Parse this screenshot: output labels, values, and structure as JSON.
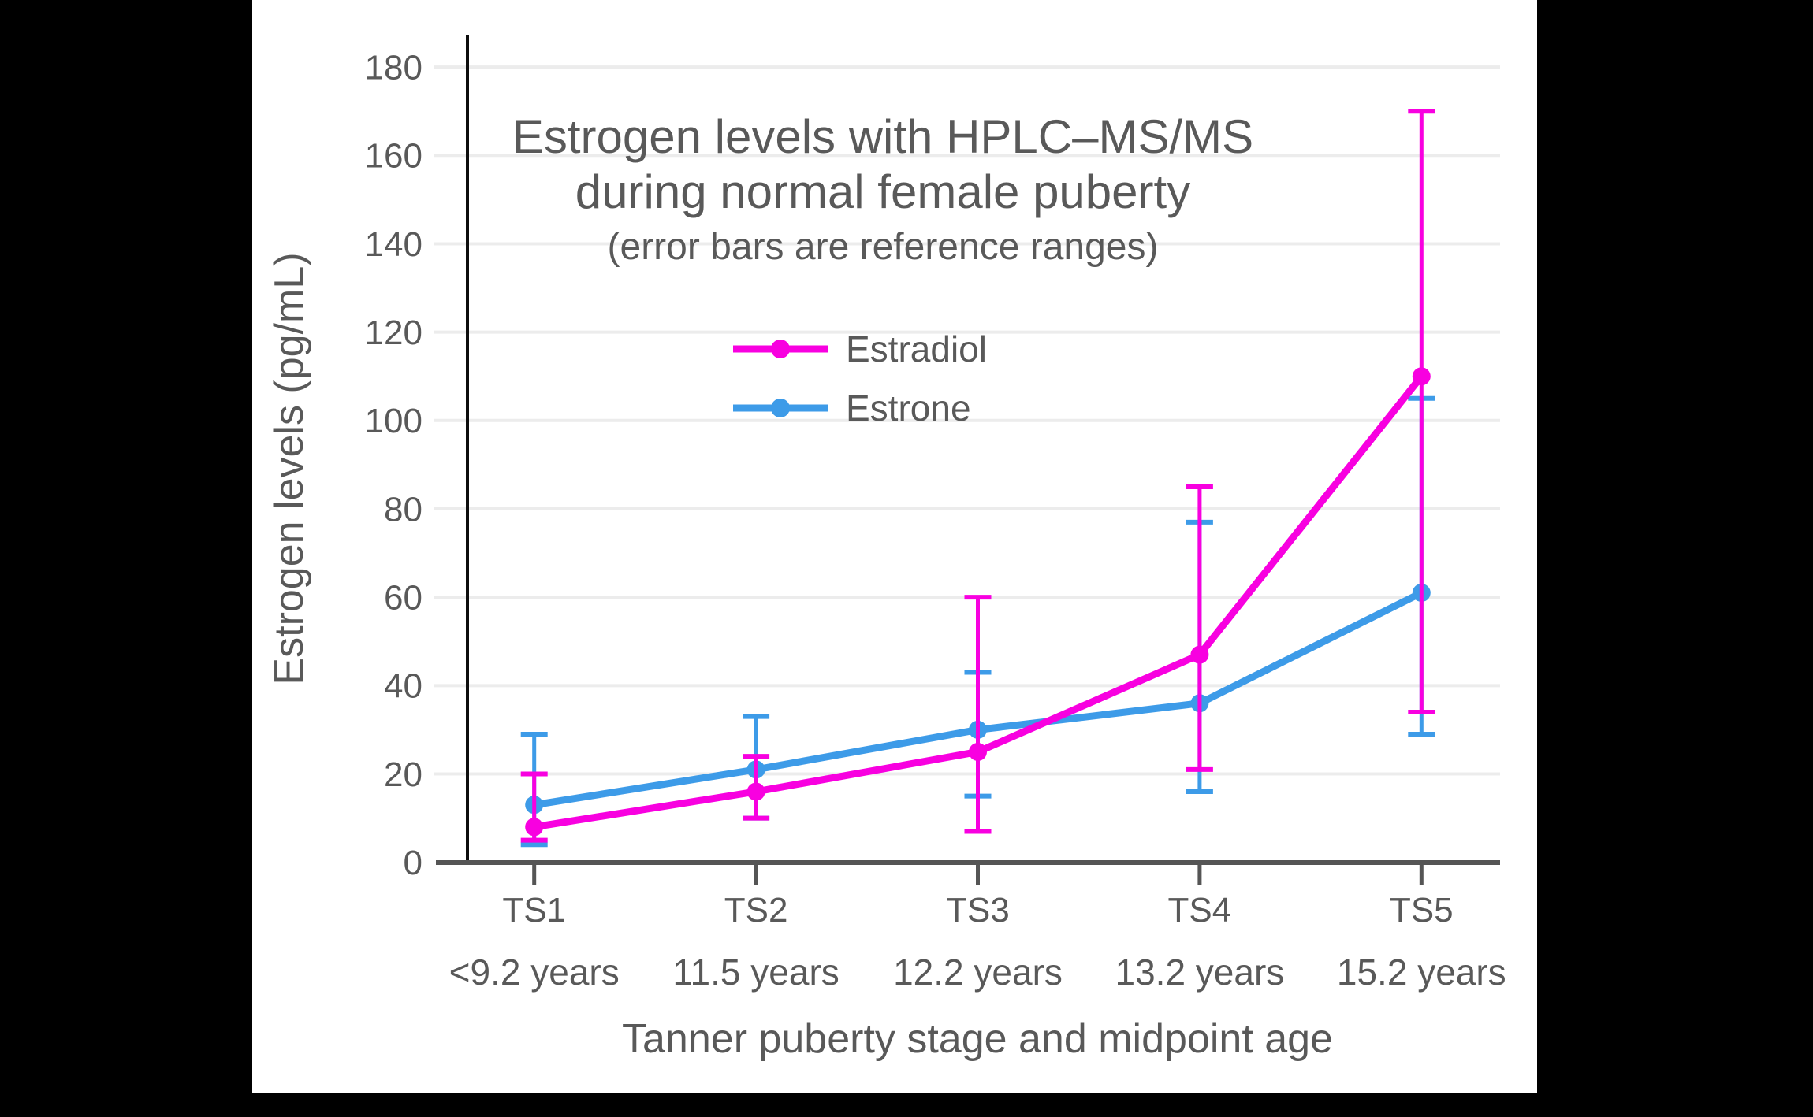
{
  "window": {
    "background": "#000000",
    "canvas_background": "#ffffff"
  },
  "chart_data": {
    "type": "line",
    "title_lines": [
      "Estrogen levels with HPLC–MS/MS",
      "during normal female puberty"
    ],
    "subtitle": "(error bars are reference ranges)",
    "ylabel": "Estrogen levels (pg/mL)",
    "xlabel": "Tanner puberty stage and midpoint age",
    "legend_position": "inside plot, upper-left of center",
    "grid": "horizontal gridlines every 20, light gray",
    "error_bars": "reference ranges, capped, same color as series",
    "ylim": [
      0,
      180
    ],
    "yticks": [
      0,
      20,
      40,
      60,
      80,
      100,
      120,
      140,
      160,
      180
    ],
    "categories": [
      {
        "stage": "TS1",
        "age": "<9.2 years"
      },
      {
        "stage": "TS2",
        "age": "11.5 years"
      },
      {
        "stage": "TS3",
        "age": "12.2 years"
      },
      {
        "stage": "TS4",
        "age": "13.2 years"
      },
      {
        "stage": "TS5",
        "age": "15.2 years"
      }
    ],
    "series": [
      {
        "name": "Estradiol",
        "color": "#f800e0",
        "values": [
          8,
          16,
          25,
          47,
          110
        ],
        "range_low": [
          5,
          10,
          7,
          21,
          34
        ],
        "range_high": [
          20,
          24,
          60,
          85,
          170
        ]
      },
      {
        "name": "Estrone",
        "color": "#3d9be8",
        "values": [
          13,
          21,
          30,
          36,
          61
        ],
        "range_low": [
          4,
          10,
          15,
          16,
          29
        ],
        "range_high": [
          29,
          33,
          43,
          77,
          105
        ]
      }
    ],
    "colors": {
      "text": "#595959",
      "grid": "#ececec",
      "axis": "#555555",
      "y_axis_line": "#0d0d0d"
    }
  }
}
